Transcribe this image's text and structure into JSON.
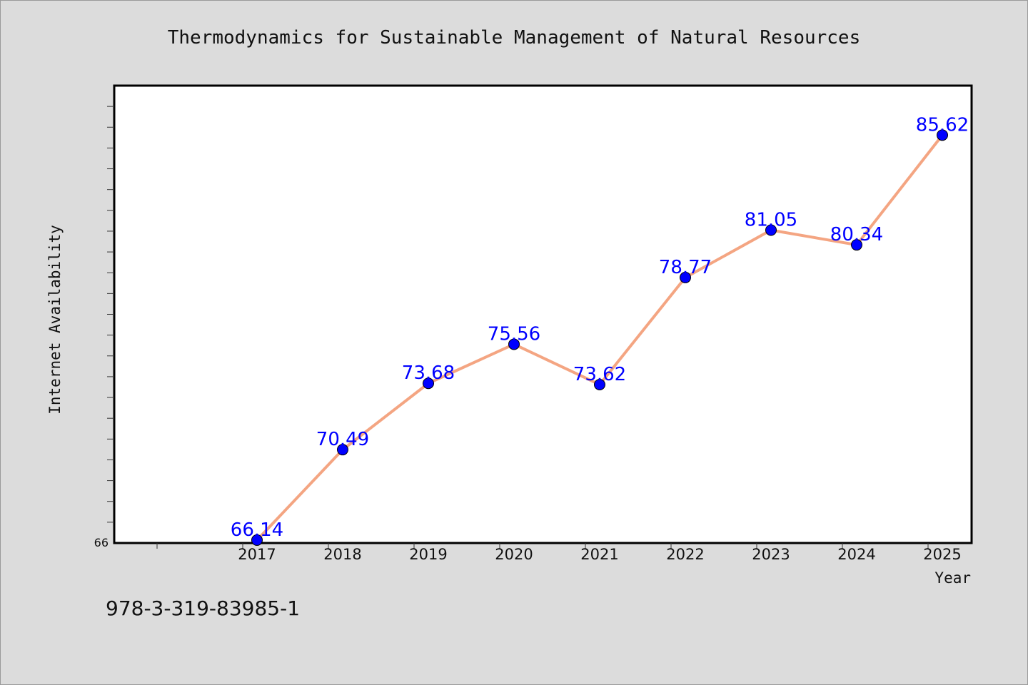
{
  "chart_data": {
    "type": "line",
    "title": "Thermodynamics for Sustainable Management of Natural Resources",
    "xlabel": "Year",
    "ylabel": "Internet Availability",
    "categories": [
      "2017",
      "2018",
      "2019",
      "2020",
      "2021",
      "2022",
      "2023",
      "2024",
      "2025"
    ],
    "series": [
      {
        "values": [
          66.14,
          70.49,
          73.68,
          75.56,
          73.62,
          78.77,
          81.05,
          80.34,
          85.62
        ],
        "labels": [
          "66.14",
          "70.49",
          "73.68",
          "75.56",
          "73.62",
          "78.77",
          "81.05",
          "80.34",
          "85.62"
        ]
      }
    ],
    "ylim": [
      66,
      88
    ],
    "y_tick_labels": [
      "66"
    ],
    "grid": false,
    "colors": {
      "line": "#f4a582",
      "marker": "#0000ff",
      "data_label": "#0000ff",
      "plot_background": "#ffffff",
      "figure_background": "#dcdcdc"
    }
  },
  "footer": {
    "isbn": "978-3-319-83985-1"
  }
}
